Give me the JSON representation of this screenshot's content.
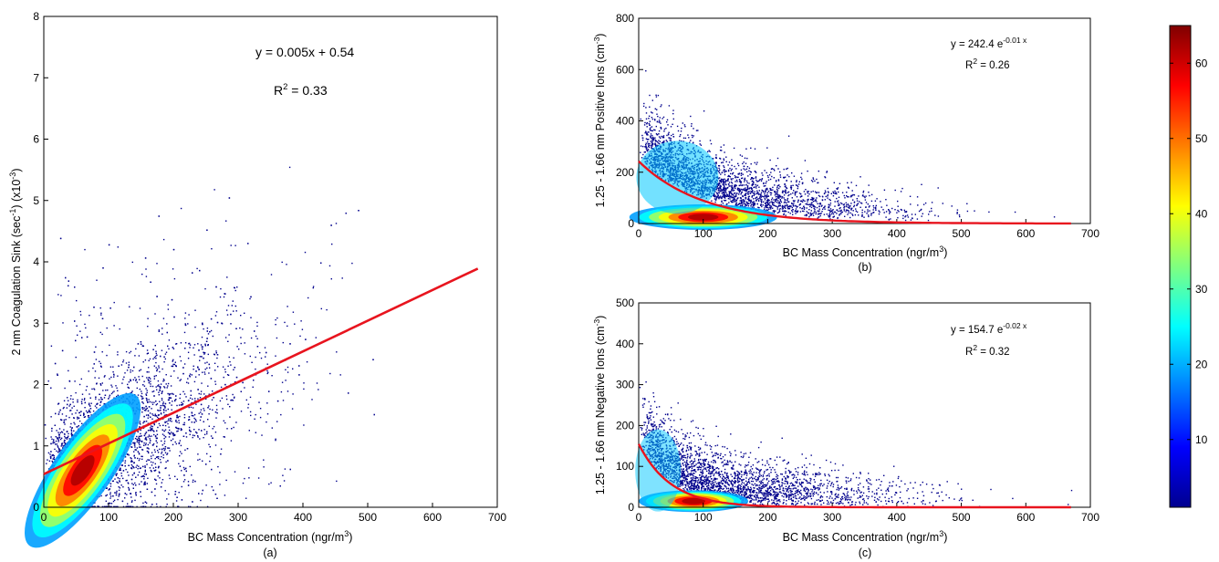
{
  "chart_data": [
    {
      "type": "scatter",
      "panel_label": "(a)",
      "xlabel": {
        "main": "BC Mass Concentration (ngr/m",
        "sup": "3",
        "end": ")"
      },
      "ylabel": {
        "p1": "2 nm Coagulation Sink (sec",
        "sup1": "-1",
        "p2": ") (x10",
        "sup2": "-3",
        "p3": ")"
      },
      "xlim": [
        0,
        700
      ],
      "ylim": [
        0,
        8
      ],
      "xticks": [
        0,
        100,
        200,
        300,
        400,
        500,
        600,
        700
      ],
      "yticks": [
        0,
        1,
        2,
        3,
        4,
        5,
        6,
        7,
        8
      ],
      "density": {
        "center_x": 60,
        "center_y": 0.6,
        "note": "high-density core near origin"
      },
      "fit": {
        "model": "linear",
        "slope": 0.005,
        "intercept": 0.54,
        "x_range": [
          0,
          670
        ]
      },
      "equation": "y = 0.005x + 0.54",
      "r2": {
        "label": "R",
        "sup": "2",
        "value": " = 0.33"
      }
    },
    {
      "type": "scatter",
      "panel_label": "(b)",
      "xlabel": {
        "main": "BC Mass Concentration (ngr/m",
        "sup": "3",
        "end": ")"
      },
      "ylabel": {
        "p1": "1.25 - 1.66 nm Positive Ions (cm",
        "sup1": "-3",
        "p2": ")"
      },
      "xlim": [
        0,
        700
      ],
      "ylim": [
        0,
        800
      ],
      "xticks": [
        0,
        100,
        200,
        300,
        400,
        500,
        600,
        700
      ],
      "yticks": [
        0,
        200,
        400,
        600,
        800
      ],
      "fit": {
        "model": "exponential",
        "a": 242.4,
        "b": -0.01,
        "x_range": [
          0,
          670
        ]
      },
      "equation": {
        "main": "y = 242.4 e",
        "sup": "-0.01 x"
      },
      "r2": {
        "label": "R",
        "sup": "2",
        "value": " = 0.26"
      }
    },
    {
      "type": "scatter",
      "panel_label": "(c)",
      "xlabel": {
        "main": "BC Mass Concentration (ngr/m",
        "sup": "3",
        "end": ")"
      },
      "ylabel": {
        "p1": "1.25 - 1.66 nm Negative Ions (cm",
        "sup1": "-3",
        "p2": ")"
      },
      "xlim": [
        0,
        700
      ],
      "ylim": [
        0,
        500
      ],
      "xticks": [
        0,
        100,
        200,
        300,
        400,
        500,
        600,
        700
      ],
      "yticks": [
        0,
        100,
        200,
        300,
        400,
        500
      ],
      "fit": {
        "model": "exponential",
        "a": 154.7,
        "b": -0.02,
        "x_range": [
          0,
          670
        ]
      },
      "equation": {
        "main": "y = 154.7 e",
        "sup": "-0.02 x"
      },
      "r2": {
        "label": "R",
        "sup": "2",
        "value": " = 0.32"
      }
    }
  ],
  "colorbar": {
    "range": [
      1,
      65
    ],
    "ticks": [
      10,
      20,
      30,
      40,
      50,
      60
    ],
    "colormap": "jet"
  },
  "colors": {
    "points": "#00008c",
    "fit_line": "#e8141e",
    "axis": "#000000"
  }
}
